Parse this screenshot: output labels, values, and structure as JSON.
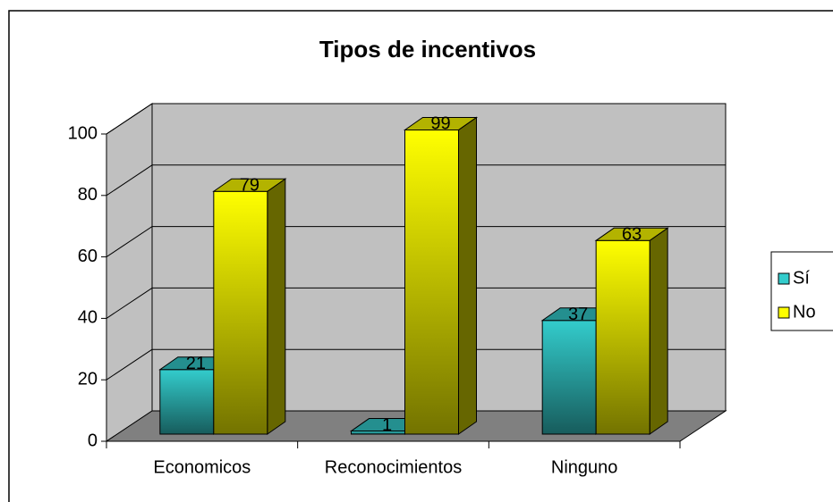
{
  "chart_data": {
    "type": "bar",
    "title": "Tipos de incentivos",
    "categories": [
      "Economicos",
      "Reconocimientos",
      "Ninguno"
    ],
    "series": [
      {
        "name": "Sí",
        "color": "#33cccc",
        "values": [
          21,
          1,
          37
        ]
      },
      {
        "name": "No",
        "color": "#ffff00",
        "values": [
          79,
          99,
          63
        ]
      }
    ],
    "ylim": [
      0,
      100
    ],
    "yticks": [
      0,
      20,
      40,
      60,
      80,
      100
    ],
    "grid": true,
    "legend": "right"
  }
}
